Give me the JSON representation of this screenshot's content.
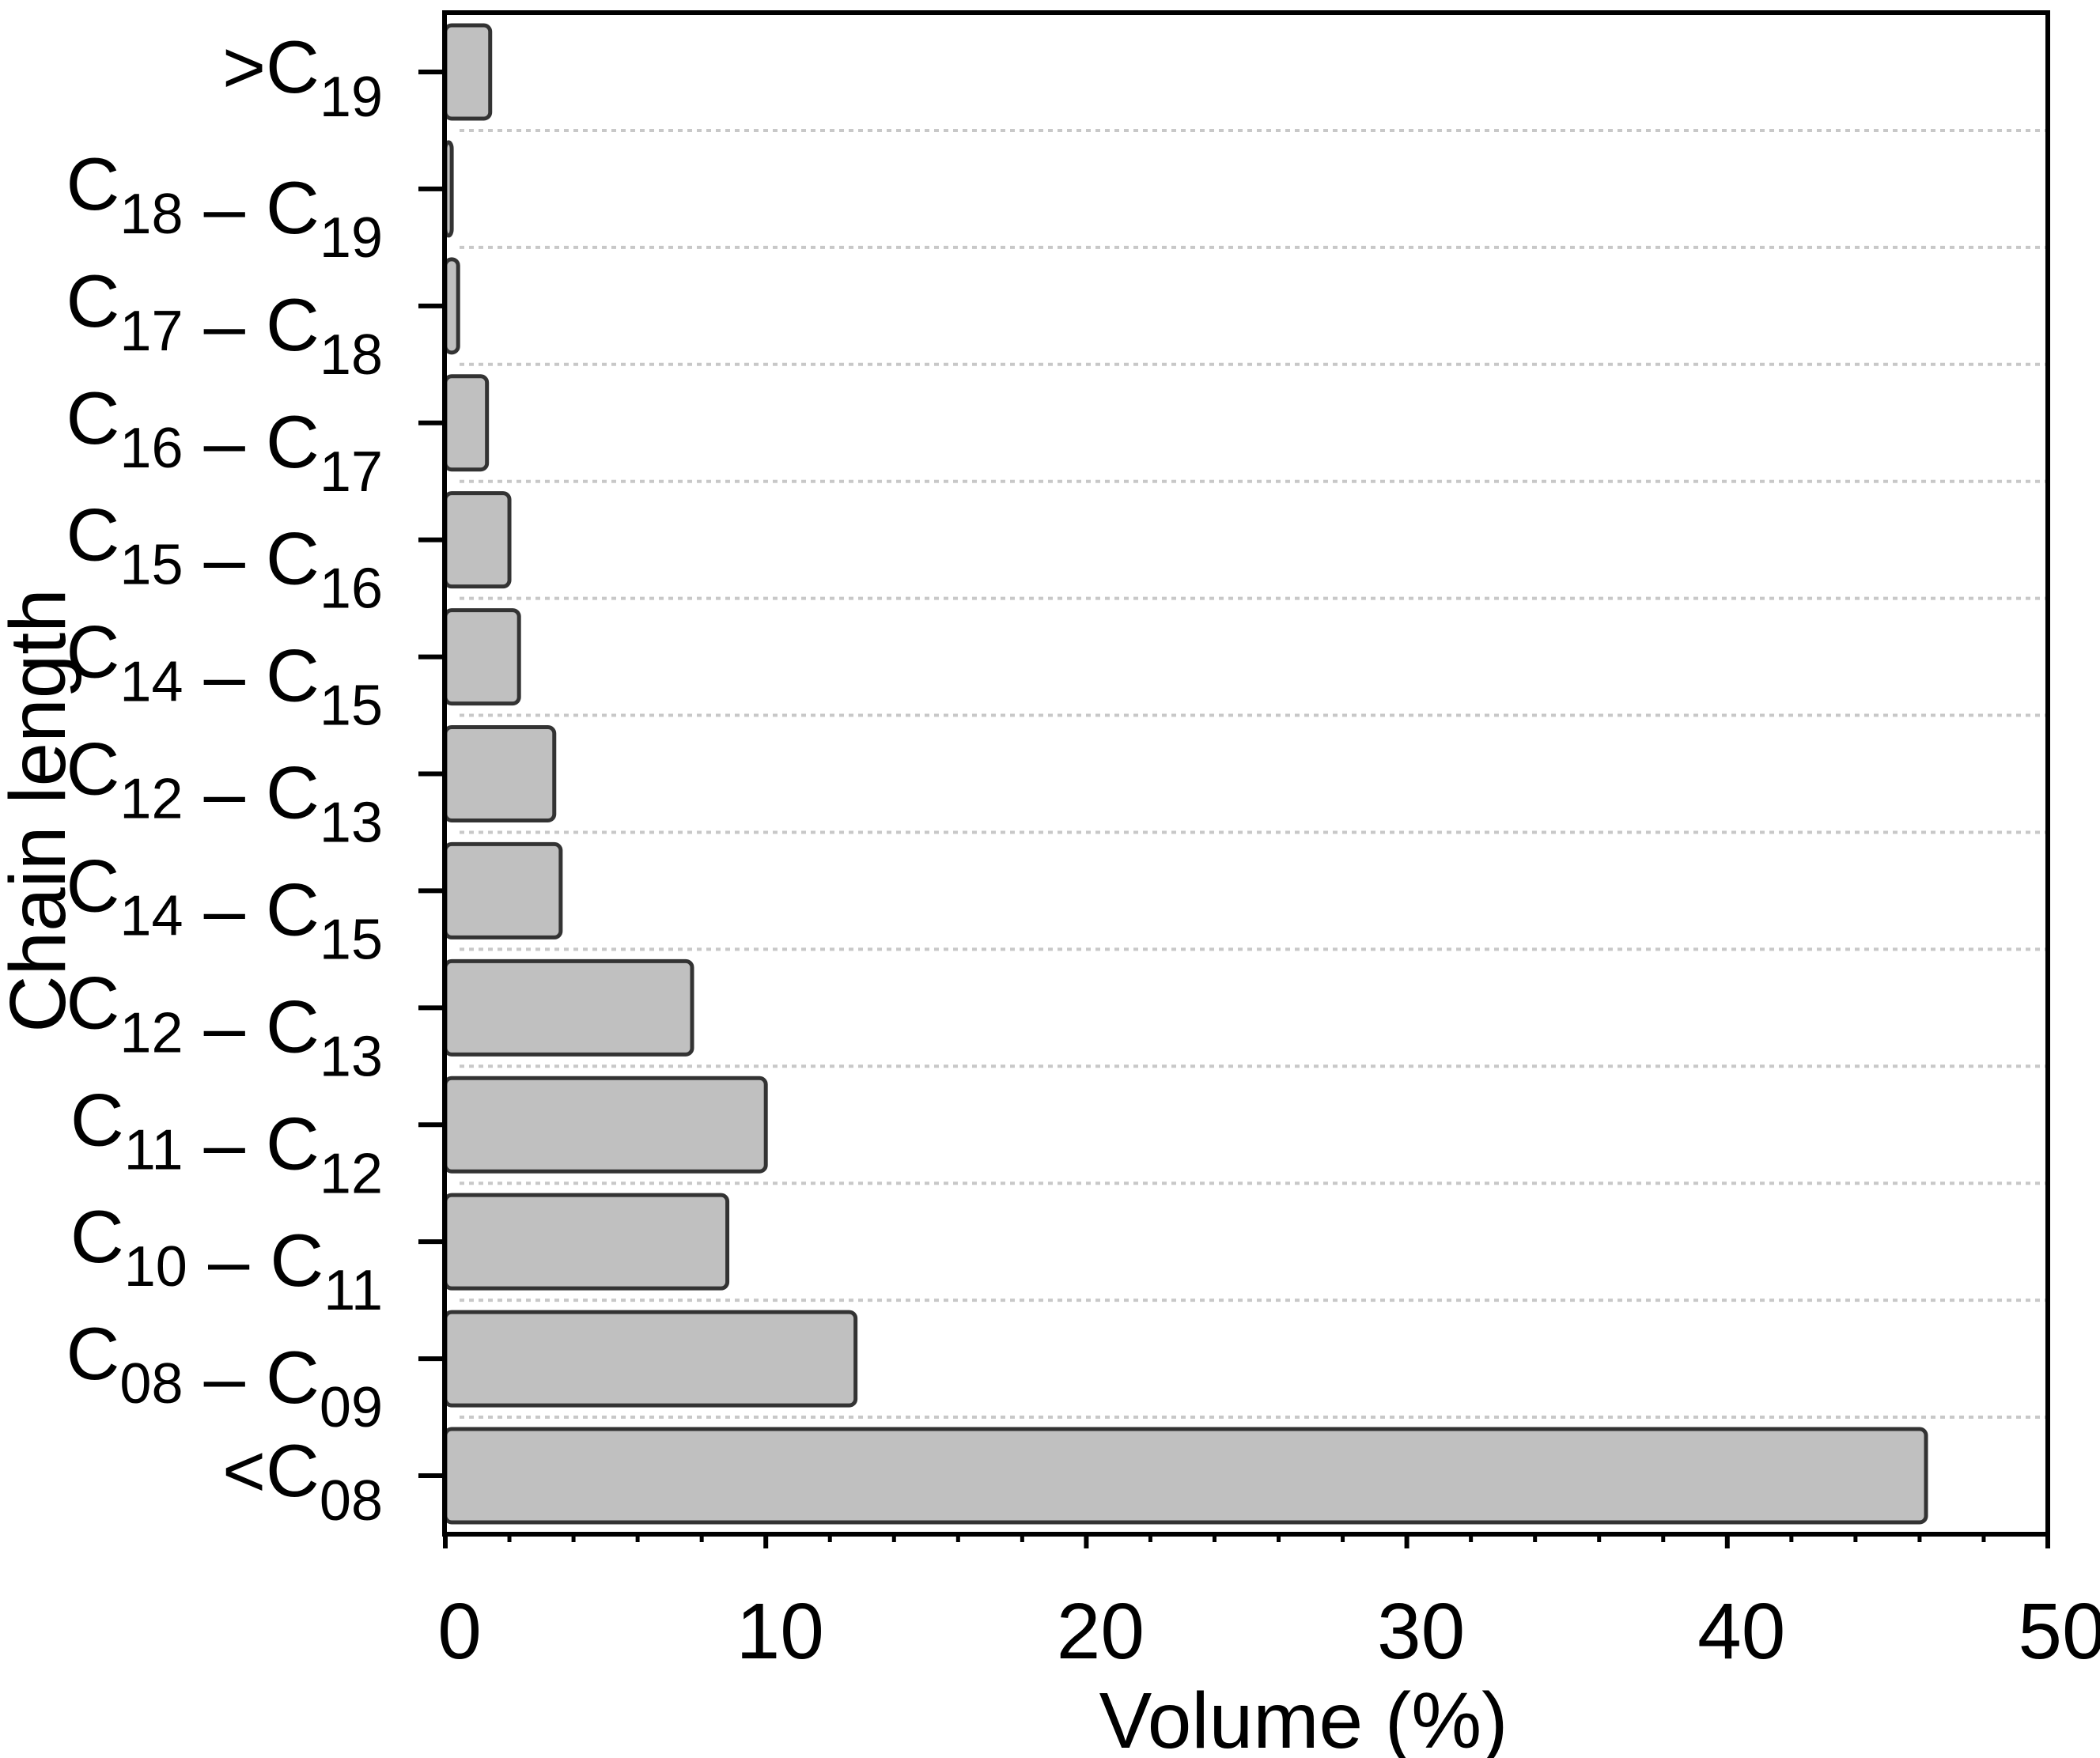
{
  "chart_data": {
    "type": "bar",
    "orientation": "horizontal",
    "title": "",
    "xlabel": "Volume (%)",
    "ylabel": "Chain length",
    "xlim": [
      0,
      50
    ],
    "x_major_ticks": [
      0,
      10,
      20,
      30,
      40,
      50
    ],
    "x_minor_tick_step": 2,
    "grid": "horizontal dotted lines between categories",
    "legend": null,
    "categories": [
      {
        "label": ">C19",
        "parts": [
          {
            "t": ">C",
            "sub": "19"
          }
        ]
      },
      {
        "label": "C18 – C19",
        "parts": [
          {
            "t": "C",
            "sub": "18"
          },
          {
            "t": " – C",
            "sub": "19"
          }
        ]
      },
      {
        "label": "C17 – C18",
        "parts": [
          {
            "t": "C",
            "sub": "17"
          },
          {
            "t": " – C",
            "sub": "18"
          }
        ]
      },
      {
        "label": "C16 – C17",
        "parts": [
          {
            "t": "C",
            "sub": "16"
          },
          {
            "t": " – C",
            "sub": "17"
          }
        ]
      },
      {
        "label": "C15 – C16",
        "parts": [
          {
            "t": "C",
            "sub": "15"
          },
          {
            "t": " – C",
            "sub": "16"
          }
        ]
      },
      {
        "label": "C14 – C15",
        "parts": [
          {
            "t": "C",
            "sub": "14"
          },
          {
            "t": " – C",
            "sub": "15"
          }
        ]
      },
      {
        "label": "C12 – C13",
        "parts": [
          {
            "t": "C",
            "sub": "12"
          },
          {
            "t": " – C",
            "sub": "13"
          }
        ]
      },
      {
        "label": "C14 – C15",
        "parts": [
          {
            "t": "C",
            "sub": "14"
          },
          {
            "t": " – C",
            "sub": "15"
          }
        ]
      },
      {
        "label": "C12 – C13",
        "parts": [
          {
            "t": "C",
            "sub": "12"
          },
          {
            "t": " – C",
            "sub": "13"
          }
        ]
      },
      {
        "label": "C11 – C12",
        "parts": [
          {
            "t": "C",
            "sub": "11"
          },
          {
            "t": " – C",
            "sub": "12"
          }
        ]
      },
      {
        "label": "C10 – C11",
        "parts": [
          {
            "t": "C",
            "sub": "10"
          },
          {
            "t": " – C",
            "sub": "11"
          }
        ]
      },
      {
        "label": "C08 – C09",
        "parts": [
          {
            "t": "C",
            "sub": "08"
          },
          {
            "t": " – C",
            "sub": "09"
          }
        ]
      },
      {
        "label": "<C08",
        "parts": [
          {
            "t": "<C",
            "sub": "08"
          }
        ]
      }
    ],
    "values": [
      1.4,
      0.2,
      0.4,
      1.3,
      2.0,
      2.3,
      3.4,
      3.6,
      7.7,
      10.0,
      8.8,
      12.8,
      46.2
    ],
    "colors": {
      "bar_fill": "#c0c0c0",
      "bar_stroke": "#333333",
      "grid": "#c8c8c8",
      "axis": "#000000"
    }
  }
}
